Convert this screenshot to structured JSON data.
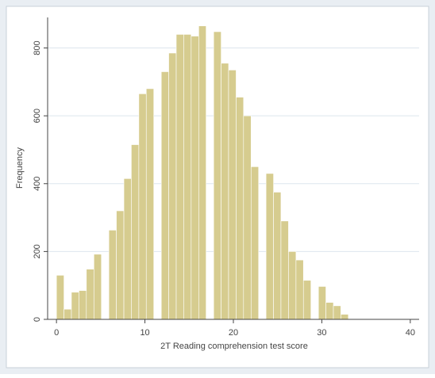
{
  "chart_data": {
    "type": "histogram",
    "x_label": "2T Reading comprehension test score",
    "y_label": "Frequency",
    "bins": [
      0,
      0.85,
      1.69,
      2.54,
      3.38,
      4.23,
      5.08,
      5.92,
      6.77,
      7.62,
      8.46,
      9.31,
      10.15,
      11,
      11.85,
      12.69,
      13.54,
      14.38,
      15.23,
      16.08,
      16.92,
      17.77,
      18.62,
      19.46,
      20.31,
      21.15,
      22,
      22.85,
      23.69,
      24.54,
      25.38,
      26.23,
      27.08,
      27.92,
      28.77,
      29.62,
      30.46,
      31.31,
      32.15,
      33
    ],
    "values": [
      130,
      30,
      80,
      85,
      148,
      192,
      0,
      263,
      320,
      415,
      515,
      665,
      680,
      0,
      730,
      785,
      840,
      840,
      835,
      865,
      0,
      848,
      755,
      735,
      655,
      600,
      450,
      0,
      430,
      375,
      290,
      200,
      175,
      115,
      0,
      97,
      50,
      40,
      15
    ],
    "color": "#d6cc8f",
    "xlim": [
      -1,
      41
    ],
    "ylim": [
      0,
      890
    ],
    "xticks": [
      0,
      10,
      20,
      30,
      40
    ],
    "yticks": [
      0,
      200,
      400,
      600,
      800
    ],
    "grid": true
  }
}
